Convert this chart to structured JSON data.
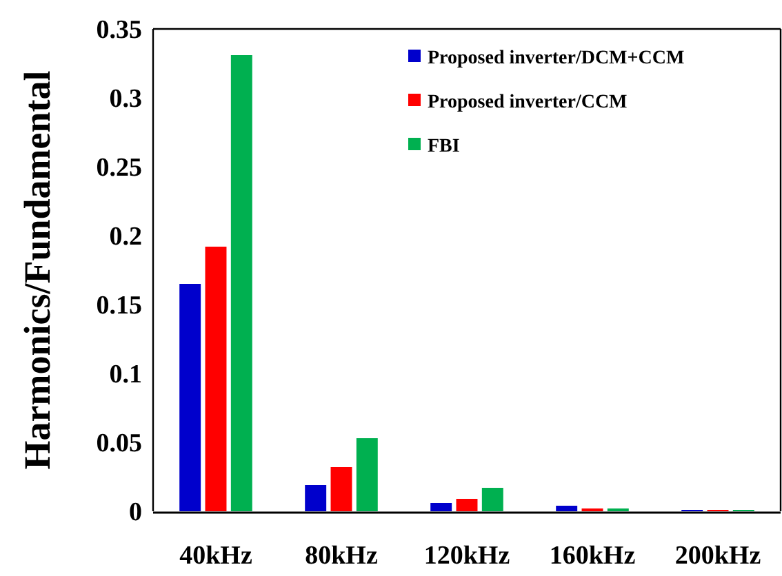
{
  "chart_data": {
    "type": "bar",
    "ylabel": "Harmonics/Fundamental",
    "categories": [
      "40kHz",
      "80kHz",
      "120kHz",
      "160kHz",
      "200kHz"
    ],
    "series": [
      {
        "name": "Proposed inverter/DCM+CCM",
        "color": "#0000cc",
        "values": [
          0.165,
          0.019,
          0.006,
          0.004,
          0.001
        ]
      },
      {
        "name": "Proposed inverter/CCM",
        "color": "#ff0000",
        "values": [
          0.192,
          0.032,
          0.009,
          0.002,
          0.001
        ]
      },
      {
        "name": "FBI",
        "color": "#00b050",
        "values": [
          0.331,
          0.053,
          0.017,
          0.002,
          0.001
        ]
      }
    ],
    "ylim": [
      0,
      0.35
    ],
    "yticks": [
      0,
      0.05,
      0.1,
      0.15,
      0.2,
      0.25,
      0.3,
      0.35
    ],
    "grid": false,
    "legend": "top right"
  }
}
